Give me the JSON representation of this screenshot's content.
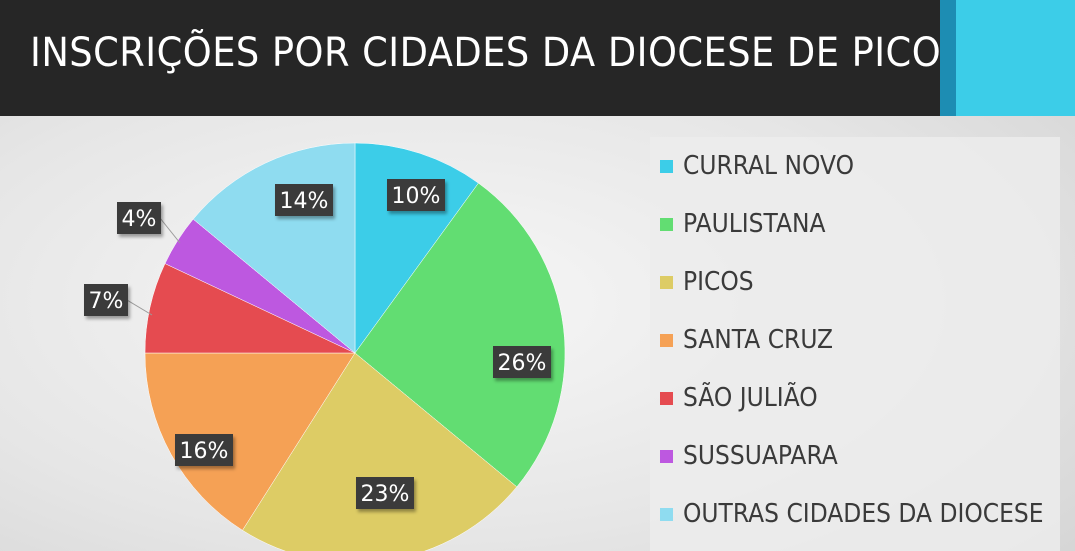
{
  "header": {
    "title": "INSCRIÇÕES POR CIDADES DA DIOCESE DE PICOS"
  },
  "colors": {
    "header_bg": "#262626",
    "accent": "#3ccde8",
    "accent_dark": "#1d8db3",
    "label_bg": "#3a3a3a",
    "label_text": "#ffffff"
  },
  "chart_data": {
    "type": "pie",
    "title": "INSCRIÇÕES POR CIDADES DA DIOCESE DE PICOS",
    "legend_position": "right",
    "start_angle_deg": 0,
    "direction": "clockwise",
    "categories": [
      "CURRAL NOVO",
      "PAULISTANA",
      "PICOS",
      "SANTA CRUZ",
      "SÃO JULIÃO",
      "SUSSUAPARA",
      "OUTRAS CIDADES DA DIOCESE"
    ],
    "values": [
      10,
      26,
      23,
      16,
      7,
      4,
      14
    ],
    "labels": [
      "10%",
      "26%",
      "23%",
      "16%",
      "7%",
      "4%",
      "14%"
    ],
    "colors": [
      "#3ccde8",
      "#62dd72",
      "#ddcc65",
      "#f5a155",
      "#e54b50",
      "#bd58e0",
      "#8fdcf0"
    ]
  }
}
